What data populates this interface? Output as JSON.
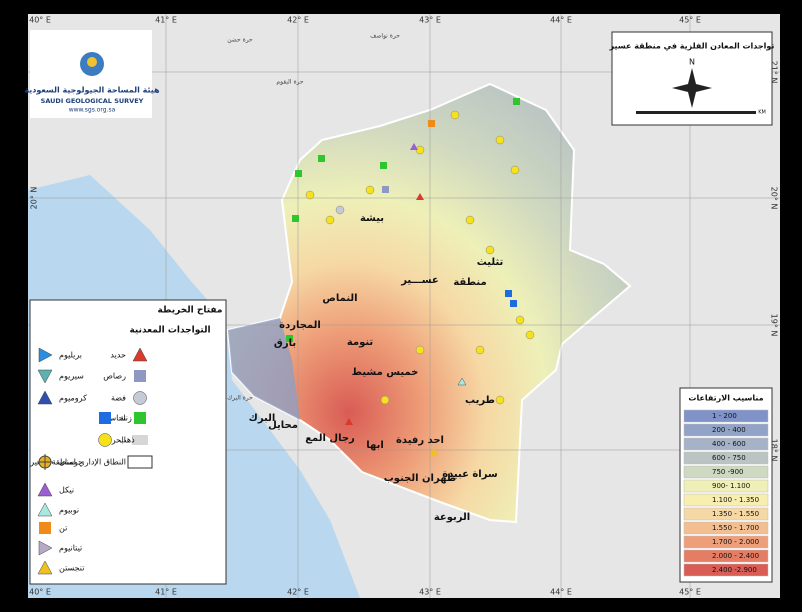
{
  "title": "تواجدات المعادن الفلزية في منطقة عسير",
  "logo": {
    "name_ar": "هيئة المساحة الجيولوجية السعودية",
    "name_en": "SAUDI GEOLOGICAL SURVEY",
    "url": "www.sgs.org.sa"
  },
  "longitudes": [
    "40° E",
    "41° E",
    "42° E",
    "43° E",
    "44° E",
    "45° E"
  ],
  "latitudes": [
    "21° N",
    "20° N",
    "19° N",
    "18° N"
  ],
  "north": "N",
  "scale_unit": "KM",
  "places": [
    "بيشة",
    "تثليث",
    "عســـير",
    "منطقة",
    "النماص",
    "تنومة",
    "المجاردة",
    "بارق",
    "خميس مشيط",
    "طريب",
    "محايل",
    "البرك",
    "رجال المع",
    "ابها",
    "احد رفيدة",
    "ظهران الجنوب",
    "سراة عبيدة",
    "الربوعة",
    "حرة البقوم",
    "حرة نواصف",
    "حرة حضن",
    "حرة البرك"
  ],
  "legend": {
    "title": "مفتاح الخريطة",
    "subtitle": "التواجدات المعدنية",
    "items": [
      {
        "label": "حديد",
        "symbol": "triangle",
        "color": "#d93a2b"
      },
      {
        "label": "رصاص",
        "symbol": "square",
        "color": "#8f98c2"
      },
      {
        "label": "فضة",
        "symbol": "circle",
        "color": "#c5cbd6"
      },
      {
        "label": "نحاس",
        "symbol": "square",
        "color": "#2fc52f"
      },
      {
        "label": "الحرات",
        "symbol": "rect",
        "color": "#d6d6d6"
      },
      {
        "label": "النطاق الإداري لمنطقة عسير",
        "symbol": "outline",
        "color": "#ffffff"
      },
      {
        "label": "بريليوم",
        "symbol": "triangle-right",
        "color": "#2a8fe0"
      },
      {
        "label": "سيريوم",
        "symbol": "triangle-down",
        "color": "#5fb0b0"
      },
      {
        "label": "كروميوم",
        "symbol": "triangle",
        "color": "#2e4fb0"
      },
      {
        "label": "زنك",
        "symbol": "square",
        "color": "#1f6be0"
      },
      {
        "label": "ذهب",
        "symbol": "circle",
        "color": "#f6e11a"
      },
      {
        "label": "جوسان",
        "symbol": "cross",
        "color": "#e8b020"
      },
      {
        "label": "نيكل",
        "symbol": "triangle",
        "color": "#9a5fd0"
      },
      {
        "label": "نوبيوم",
        "symbol": "triangle",
        "color": "#a8e8e0"
      },
      {
        "label": "تن",
        "symbol": "square",
        "color": "#f08a1a"
      },
      {
        "label": "تيتانيوم",
        "symbol": "triangle-right",
        "color": "#b9a8c8"
      },
      {
        "label": "تنجستن",
        "symbol": "triangle",
        "color": "#f0c020"
      }
    ]
  },
  "elevation": {
    "title": "مناسيب الارتفاعات",
    "items": [
      {
        "label": "1 - 200",
        "color": "#8093c8"
      },
      {
        "label": "200 - 400",
        "color": "#92a3c8"
      },
      {
        "label": "400 - 600",
        "color": "#a6b3c6"
      },
      {
        "label": "600 - 750",
        "color": "#bac5c3"
      },
      {
        "label": "750 -900",
        "color": "#cfd8c0"
      },
      {
        "label": "900- 1.100",
        "color": "#eef0b8"
      },
      {
        "label": "1.100 - 1.350",
        "color": "#f7eeb0"
      },
      {
        "label": "1.350 - 1.550",
        "color": "#f6d8a4"
      },
      {
        "label": "1.550 - 1.700",
        "color": "#f3bf90"
      },
      {
        "label": "1.700 - 2.000",
        "color": "#ee9e78"
      },
      {
        "label": "2.000 - 2.400",
        "color": "#e47d63"
      },
      {
        "label": "2.400 -2.900",
        "color": "#d95c55"
      }
    ]
  }
}
